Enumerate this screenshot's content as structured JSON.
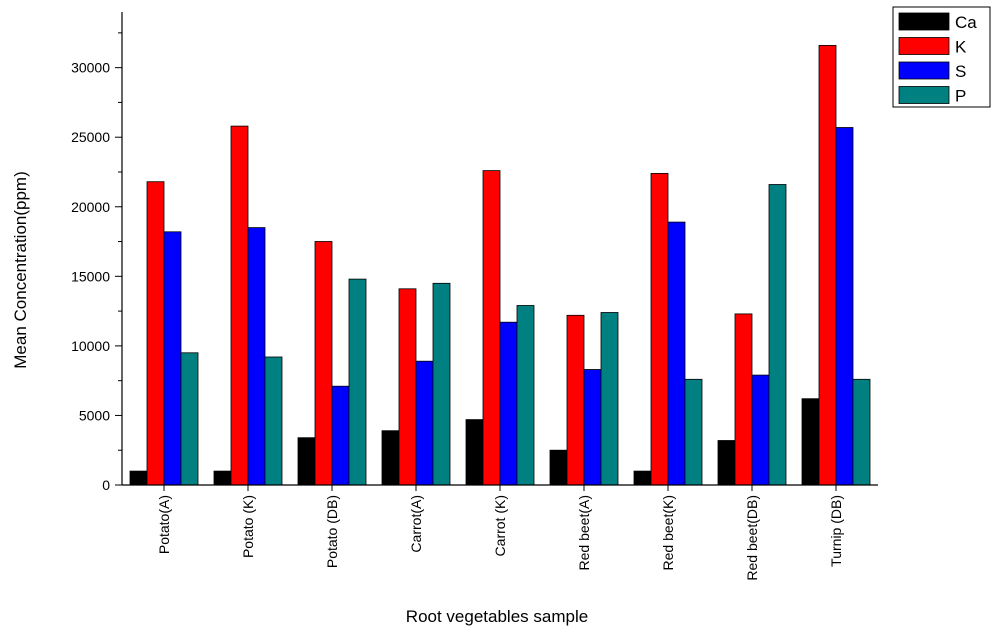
{
  "chart_data": {
    "type": "bar",
    "title": "",
    "xlabel": "Root vegetables sample",
    "ylabel": "Mean Concentration(ppm)",
    "ylim": [
      0,
      34000
    ],
    "yticks": [
      0,
      5000,
      10000,
      15000,
      20000,
      25000,
      30000
    ],
    "categories": [
      "Potato(A)",
      "Potato (K)",
      "Potato (DB)",
      "Carrot(A)",
      "Carrot (K)",
      "Red beet(A)",
      "Red beet(K)",
      "Red beet(DB)",
      "Turnip (DB)"
    ],
    "series": [
      {
        "name": "Ca",
        "color": "#000000",
        "values": [
          1000,
          1000,
          3400,
          3900,
          4700,
          2500,
          1000,
          3200,
          6200
        ]
      },
      {
        "name": "K",
        "color": "#ff0000",
        "values": [
          21800,
          25800,
          17500,
          14100,
          22600,
          12200,
          22400,
          12300,
          31600
        ]
      },
      {
        "name": "S",
        "color": "#0000ff",
        "values": [
          18200,
          18500,
          7100,
          8900,
          11700,
          8300,
          18900,
          7900,
          25700
        ]
      },
      {
        "name": "P",
        "color": "#008080",
        "values": [
          9500,
          9200,
          14800,
          14500,
          12900,
          12400,
          7600,
          21600,
          7600
        ]
      }
    ],
    "legend_position": "top-right",
    "grid": false
  }
}
